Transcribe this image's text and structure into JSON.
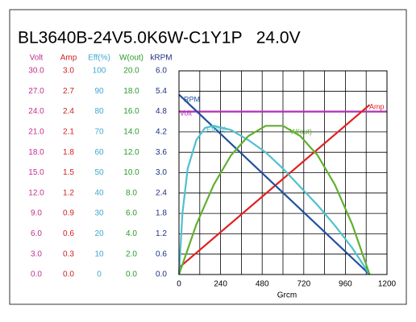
{
  "chart_data": {
    "type": "line",
    "title": "BL3640B-24V5.0K6W-C1Y1P   24.0V",
    "xlabel": "Grcm",
    "xlim": [
      0,
      1200
    ],
    "xticks": [
      0,
      240,
      480,
      720,
      960,
      1200
    ],
    "xgrid": [
      0,
      120,
      240,
      360,
      480,
      600,
      720,
      840,
      960,
      1080,
      1200
    ],
    "grid": true,
    "y_axes": [
      {
        "label": "Volt",
        "color": "#c0308f",
        "ylim": [
          0,
          30
        ],
        "yticks": [
          {
            "value": 0,
            "label": "0.0"
          },
          {
            "value": 3,
            "label": "3.0"
          },
          {
            "value": 6,
            "label": "6.0"
          },
          {
            "value": 9,
            "label": "9.0"
          },
          {
            "value": 12,
            "label": "12.0"
          },
          {
            "value": 15,
            "label": "15.0"
          },
          {
            "value": 18,
            "label": "18.0"
          },
          {
            "value": 21,
            "label": "21.0"
          },
          {
            "value": 24,
            "label": "24.0"
          },
          {
            "value": 27,
            "label": "27.0"
          },
          {
            "value": 30,
            "label": "30.0"
          }
        ]
      },
      {
        "label": "Amp",
        "color": "#d02020",
        "ylim": [
          0,
          3
        ],
        "yticks": [
          {
            "value": 0,
            "label": "0.0"
          },
          0.3,
          0.6,
          0.9,
          1.2,
          1.5,
          1.8,
          2.1,
          2.4,
          2.7,
          {
            "value": 3,
            "label": "3.0"
          }
        ]
      },
      {
        "label": "Eff(%)",
        "color": "#40a8d0",
        "ylim": [
          0,
          100
        ],
        "yticks": [
          0,
          10,
          20,
          30,
          40,
          50,
          60,
          70,
          80,
          90,
          100
        ]
      },
      {
        "label": "W(out)",
        "color": "#2a9a2a",
        "ylim": [
          0,
          20
        ],
        "yticks": [
          {
            "value": 0,
            "label": "0.0"
          },
          {
            "value": 2,
            "label": "2.0"
          },
          {
            "value": 4,
            "label": "4.0"
          },
          {
            "value": 6,
            "label": "6.0"
          },
          {
            "value": 8,
            "label": "8.0"
          },
          {
            "value": 10,
            "label": "10.0"
          },
          {
            "value": 12,
            "label": "12.0"
          },
          {
            "value": 14,
            "label": "14.0"
          },
          {
            "value": 16,
            "label": "16.0"
          },
          {
            "value": 18,
            "label": "18.0"
          },
          {
            "value": 20,
            "label": "20.0"
          }
        ]
      },
      {
        "label": "kRPM",
        "color": "#203080",
        "ylim": [
          0,
          6
        ],
        "yticks": [
          {
            "value": 0,
            "label": "0.0"
          },
          0.6,
          1.2,
          1.8,
          2.4,
          {
            "value": 3,
            "label": "3.0"
          },
          3.6,
          4.2,
          4.8,
          5.4,
          {
            "value": 6,
            "label": "6.0"
          }
        ]
      }
    ],
    "series": [
      {
        "name": "Volt",
        "color": "#b030b0",
        "axis": 0,
        "x": [
          0,
          1200
        ],
        "values": [
          24,
          24
        ]
      },
      {
        "name": "Amp",
        "color": "#e02020",
        "axis": 1,
        "x": [
          0,
          1100
        ],
        "values": [
          0.1,
          2.5
        ]
      },
      {
        "name": "RPM",
        "color": "#2050a0",
        "axis": 4,
        "x": [
          0,
          1100
        ],
        "values": [
          5.3,
          0
        ]
      },
      {
        "name": "Eff(%)",
        "color": "#50c0d0",
        "axis": 2,
        "x": [
          0,
          20,
          50,
          100,
          150,
          200,
          300,
          400,
          500,
          600,
          700,
          800,
          900,
          1000,
          1100
        ],
        "values": [
          0,
          30,
          52,
          66,
          72,
          73,
          71,
          66,
          60,
          52,
          43,
          34,
          24,
          13,
          0
        ]
      },
      {
        "name": "W(out)",
        "color": "#60b030",
        "axis": 3,
        "x": [
          0,
          100,
          200,
          300,
          400,
          500,
          600,
          700,
          800,
          900,
          1000,
          1100
        ],
        "values": [
          0,
          4.9,
          8.8,
          11.7,
          13.6,
          14.6,
          14.6,
          13.6,
          11.7,
          8.8,
          4.9,
          0
        ]
      }
    ]
  }
}
